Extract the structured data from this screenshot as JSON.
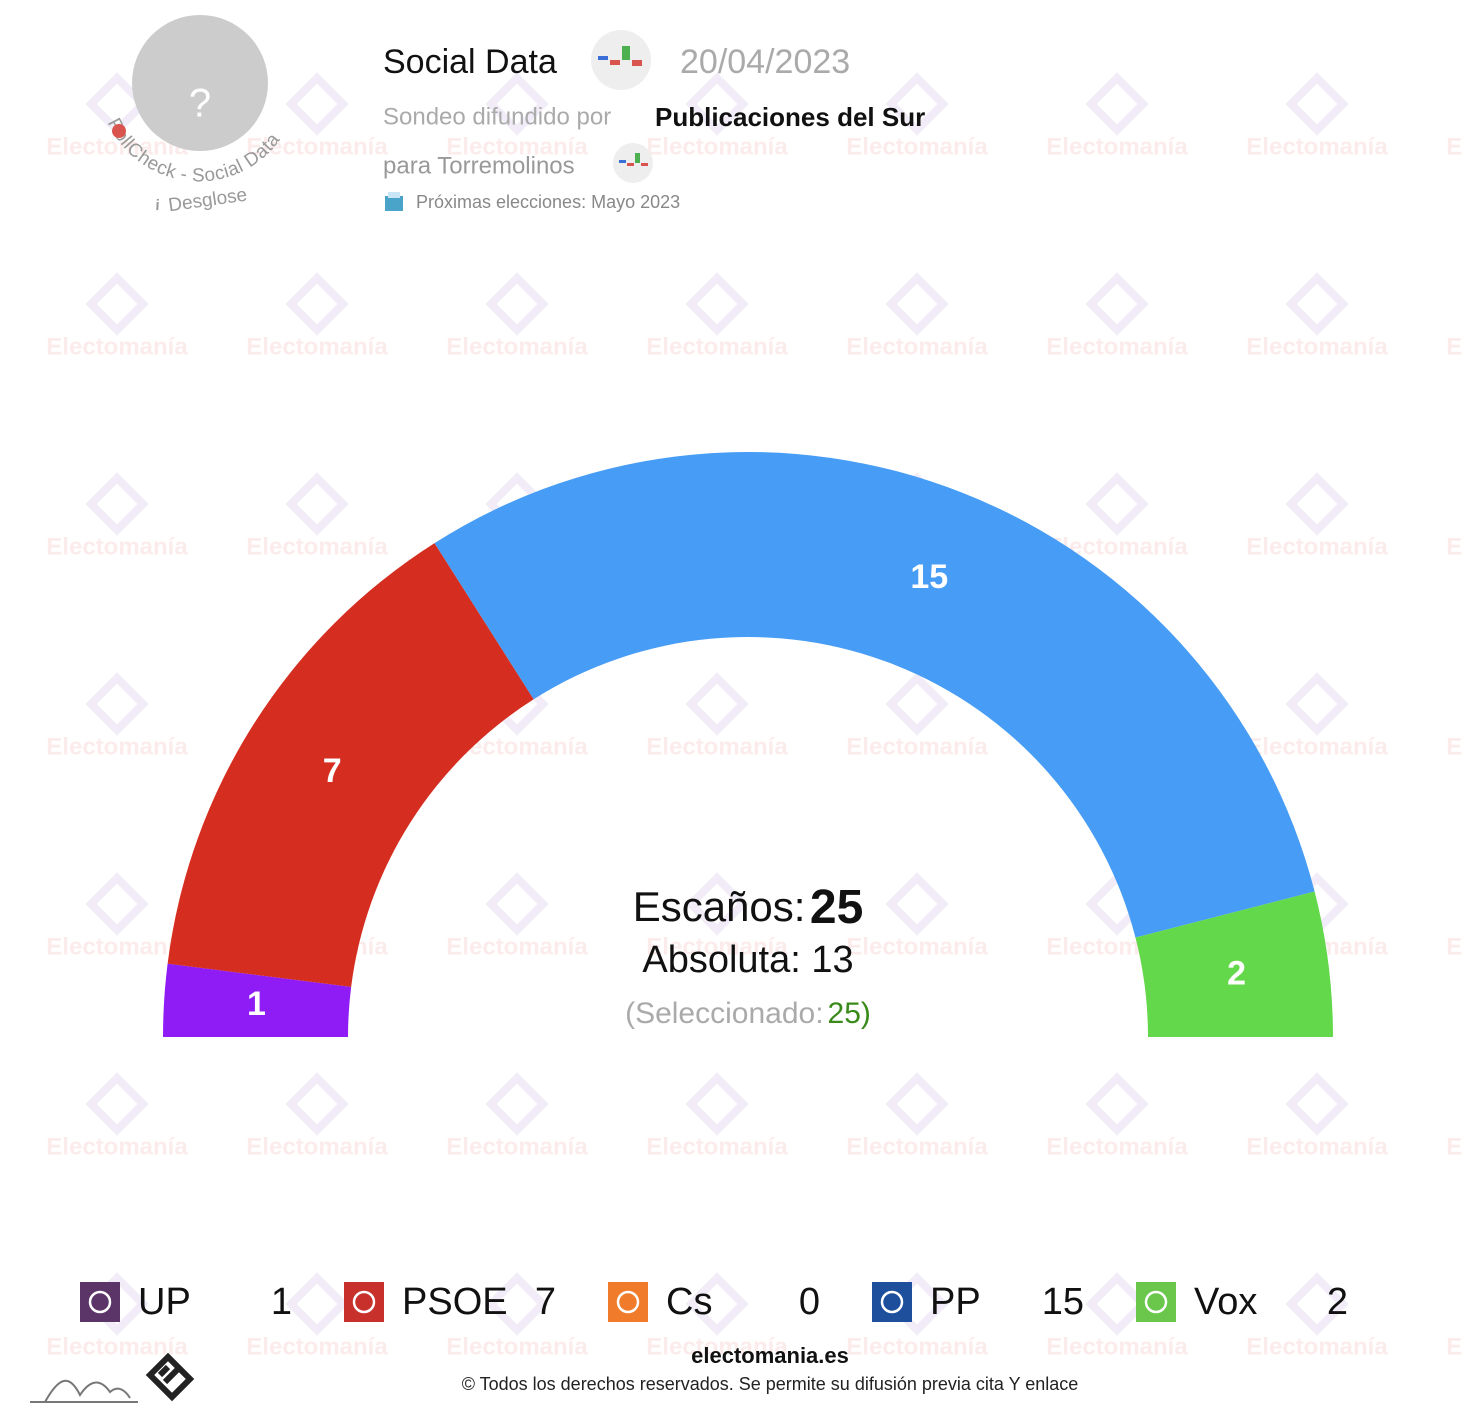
{
  "header": {
    "pollster": "Social Data",
    "date": "20/04/2023",
    "published_by_label": "Sondeo difundido por",
    "publisher": "Publicaciones del Sur",
    "scope": "para Torremolinos",
    "next_elections": "Próximas elecciones: Mayo 2023",
    "avatar_placeholder": "?",
    "avatar_caption": "PollCheck - Social Data",
    "breakdown_icon": "i",
    "breakdown": "Desglose"
  },
  "watermark": "Electomanía",
  "chart_data": {
    "type": "parliament",
    "total": 25,
    "series": [
      {
        "name": "UP",
        "color": "#8f1bf5",
        "logo_color": "#5b3468",
        "values": [
          1
        ]
      },
      {
        "name": "PSOE",
        "color": "#d52e20",
        "logo_color": "#c8302c",
        "values": [
          7
        ]
      },
      {
        "name": "Cs",
        "color": "#ef7b2b",
        "logo_color": "#ef7b2b",
        "values": [
          0
        ]
      },
      {
        "name": "PP",
        "color": "#479df5",
        "logo_color": "#1d4f9c",
        "values": [
          15
        ]
      },
      {
        "name": "Vox",
        "color": "#63d84b",
        "logo_color": "#6ac74b",
        "values": [
          2
        ]
      }
    ],
    "center": {
      "seats_label": "Escaños:",
      "seats": 25,
      "majority_label": "Absoluta:",
      "majority": 13,
      "selected_open": "(Seleccionado:",
      "selected": 25,
      "selected_close": ")"
    }
  },
  "footer": {
    "site": "electomania.es",
    "copyright": "© Todos los derechos reservados. Se permite su difusión previa cita Y enlace"
  }
}
